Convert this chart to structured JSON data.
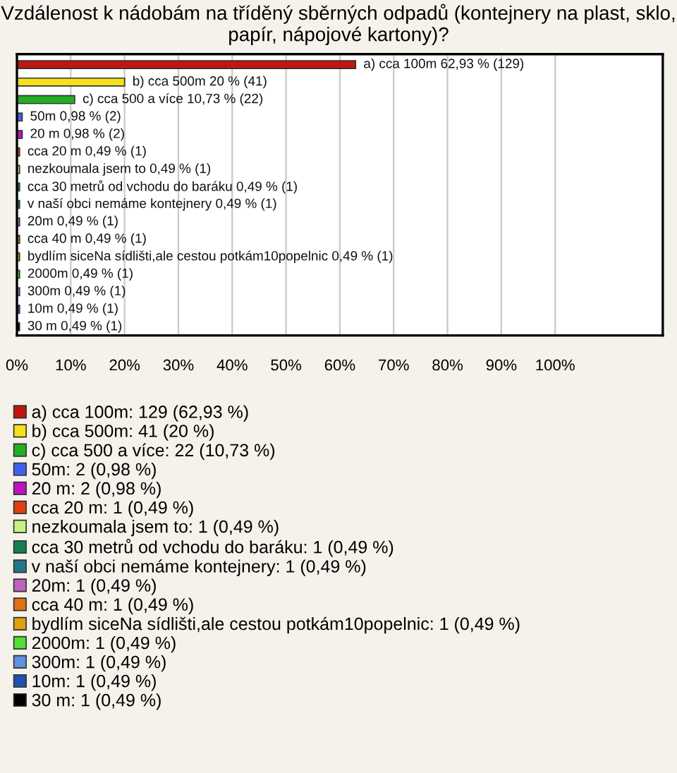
{
  "chart_data": {
    "type": "bar",
    "orientation": "horizontal",
    "title": "Vzdálenost k nádobám na tříděný sběrných odpadů (kontejnery na plast, sklo, papír, nápojové kartony)?",
    "categories": [
      null,
      null,
      null,
      null,
      null,
      null,
      null,
      null,
      null,
      null,
      null,
      null,
      null,
      null,
      null,
      null
    ],
    "xlim": [
      0,
      120
    ],
    "xticks": [
      {
        "value": 0,
        "label": "0%"
      },
      {
        "value": 10,
        "label": "10%"
      },
      {
        "value": 20,
        "label": "20%"
      },
      {
        "value": 30,
        "label": "30%"
      },
      {
        "value": 40,
        "label": "40%"
      },
      {
        "value": 50,
        "label": "50%"
      },
      {
        "value": 60,
        "label": "60%"
      },
      {
        "value": 70,
        "label": "70%"
      },
      {
        "value": 80,
        "label": "80%"
      },
      {
        "value": 90,
        "label": "90%"
      },
      {
        "value": 100,
        "label": "100%"
      }
    ],
    "grid": "x",
    "legend": "bottom",
    "tick_labels": "x",
    "series": [
      {
        "name": "a) cca 100m: 129 (62,93 %)",
        "color": "#c0160f",
        "values": [
          62.93,
          null,
          null,
          null,
          null,
          null,
          null,
          null,
          null,
          null,
          null,
          null,
          null,
          null,
          null,
          null
        ],
        "value_labels": [
          "a) cca 100m 62,93 % (129)",
          null,
          null,
          null,
          null,
          null,
          null,
          null,
          null,
          null,
          null,
          null,
          null,
          null,
          null,
          null
        ]
      },
      {
        "name": "b) cca 500m: 41 (20 %)",
        "color": "#f5e01a",
        "values": [
          null,
          20,
          null,
          null,
          null,
          null,
          null,
          null,
          null,
          null,
          null,
          null,
          null,
          null,
          null,
          null
        ],
        "value_labels": [
          null,
          "b) cca 500m 20 % (41)",
          null,
          null,
          null,
          null,
          null,
          null,
          null,
          null,
          null,
          null,
          null,
          null,
          null,
          null
        ]
      },
      {
        "name": "c) cca 500 a více: 22 (10,73 %)",
        "color": "#22b022",
        "values": [
          null,
          null,
          10.73,
          null,
          null,
          null,
          null,
          null,
          null,
          null,
          null,
          null,
          null,
          null,
          null,
          null
        ],
        "value_labels": [
          null,
          null,
          "c) cca 500 a více 10,73 % (22)",
          null,
          null,
          null,
          null,
          null,
          null,
          null,
          null,
          null,
          null,
          null,
          null,
          null
        ]
      },
      {
        "name": "50m: 2 (0,98 %)",
        "color": "#4060ee",
        "values": [
          null,
          null,
          null,
          0.98,
          null,
          null,
          null,
          null,
          null,
          null,
          null,
          null,
          null,
          null,
          null,
          null
        ],
        "value_labels": [
          null,
          null,
          null,
          "50m 0,98 % (2)",
          null,
          null,
          null,
          null,
          null,
          null,
          null,
          null,
          null,
          null,
          null,
          null
        ]
      },
      {
        "name": "20 m: 2 (0,98 %)",
        "color": "#c010c0",
        "values": [
          null,
          null,
          null,
          null,
          0.98,
          null,
          null,
          null,
          null,
          null,
          null,
          null,
          null,
          null,
          null,
          null
        ],
        "value_labels": [
          null,
          null,
          null,
          null,
          "20 m 0,98 % (2)",
          null,
          null,
          null,
          null,
          null,
          null,
          null,
          null,
          null,
          null,
          null
        ]
      },
      {
        "name": "cca 20 m: 1 (0,49 %)",
        "color": "#e04010",
        "values": [
          null,
          null,
          null,
          null,
          null,
          0.49,
          null,
          null,
          null,
          null,
          null,
          null,
          null,
          null,
          null,
          null
        ],
        "value_labels": [
          null,
          null,
          null,
          null,
          null,
          "cca 20 m 0,49 % (1)",
          null,
          null,
          null,
          null,
          null,
          null,
          null,
          null,
          null,
          null
        ]
      },
      {
        "name": "nezkoumala jsem to: 1 (0,49 %)",
        "color": "#c8f080",
        "values": [
          null,
          null,
          null,
          null,
          null,
          null,
          0.49,
          null,
          null,
          null,
          null,
          null,
          null,
          null,
          null,
          null
        ],
        "value_labels": [
          null,
          null,
          null,
          null,
          null,
          null,
          "nezkoumala jsem to 0,49 % (1)",
          null,
          null,
          null,
          null,
          null,
          null,
          null,
          null,
          null
        ]
      },
      {
        "name": "cca 30 metrů od vchodu do baráku: 1 (0,49 %)",
        "color": "#108050",
        "values": [
          null,
          null,
          null,
          null,
          null,
          null,
          null,
          0.49,
          null,
          null,
          null,
          null,
          null,
          null,
          null,
          null
        ],
        "value_labels": [
          null,
          null,
          null,
          null,
          null,
          null,
          null,
          "cca 30 metrů od vchodu do baráku 0,49 % (1)",
          null,
          null,
          null,
          null,
          null,
          null,
          null,
          null
        ]
      },
      {
        "name": "v naší obci nemáme kontejnery: 1 (0,49 %)",
        "color": "#207888",
        "values": [
          null,
          null,
          null,
          null,
          null,
          null,
          null,
          null,
          0.49,
          null,
          null,
          null,
          null,
          null,
          null,
          null
        ],
        "value_labels": [
          null,
          null,
          null,
          null,
          null,
          null,
          null,
          null,
          "v naší obci nemáme kontejnery 0,49 % (1)",
          null,
          null,
          null,
          null,
          null,
          null,
          null
        ]
      },
      {
        "name": "20m: 1 (0,49 %)",
        "color": "#c060c0",
        "values": [
          null,
          null,
          null,
          null,
          null,
          null,
          null,
          null,
          null,
          0.49,
          null,
          null,
          null,
          null,
          null,
          null
        ],
        "value_labels": [
          null,
          null,
          null,
          null,
          null,
          null,
          null,
          null,
          null,
          "20m 0,49 % (1)",
          null,
          null,
          null,
          null,
          null,
          null
        ]
      },
      {
        "name": "cca 40 m: 1 (0,49 %)",
        "color": "#e07010",
        "values": [
          null,
          null,
          null,
          null,
          null,
          null,
          null,
          null,
          null,
          null,
          0.49,
          null,
          null,
          null,
          null,
          null
        ],
        "value_labels": [
          null,
          null,
          null,
          null,
          null,
          null,
          null,
          null,
          null,
          null,
          "cca 40 m 0,49 % (1)",
          null,
          null,
          null,
          null,
          null
        ]
      },
      {
        "name": "bydlím siceNa sídlišti,ale cestou potkám10popelnic: 1 (0,49 %)",
        "color": "#e0a010",
        "values": [
          null,
          null,
          null,
          null,
          null,
          null,
          null,
          null,
          null,
          null,
          null,
          0.49,
          null,
          null,
          null,
          null
        ],
        "value_labels": [
          null,
          null,
          null,
          null,
          null,
          null,
          null,
          null,
          null,
          null,
          null,
          "bydlím siceNa sídlišti,ale cestou potkám10popelnic 0,49 % (1)",
          null,
          null,
          null,
          null
        ]
      },
      {
        "name": "2000m: 1 (0,49 %)",
        "color": "#50e030",
        "values": [
          null,
          null,
          null,
          null,
          null,
          null,
          null,
          null,
          null,
          null,
          null,
          null,
          0.49,
          null,
          null,
          null
        ],
        "value_labels": [
          null,
          null,
          null,
          null,
          null,
          null,
          null,
          null,
          null,
          null,
          null,
          null,
          "2000m 0,49 % (1)",
          null,
          null,
          null
        ]
      },
      {
        "name": "300m: 1 (0,49 %)",
        "color": "#6090e0",
        "values": [
          null,
          null,
          null,
          null,
          null,
          null,
          null,
          null,
          null,
          null,
          null,
          null,
          null,
          0.49,
          null,
          null
        ],
        "value_labels": [
          null,
          null,
          null,
          null,
          null,
          null,
          null,
          null,
          null,
          null,
          null,
          null,
          null,
          "300m 0,49 % (1)",
          null,
          null
        ]
      },
      {
        "name": "10m: 1 (0,49 %)",
        "color": "#2050b0",
        "values": [
          null,
          null,
          null,
          null,
          null,
          null,
          null,
          null,
          null,
          null,
          null,
          null,
          null,
          null,
          0.49,
          null
        ],
        "value_labels": [
          null,
          null,
          null,
          null,
          null,
          null,
          null,
          null,
          null,
          null,
          null,
          null,
          null,
          null,
          "10m 0,49 % (1)",
          null
        ]
      },
      {
        "name": "30 m: 1 (0,49 %)",
        "color": "#000000",
        "values": [
          null,
          null,
          null,
          null,
          null,
          null,
          null,
          null,
          null,
          null,
          null,
          null,
          null,
          null,
          null,
          0.49
        ],
        "value_labels": [
          null,
          null,
          null,
          null,
          null,
          null,
          null,
          null,
          null,
          null,
          null,
          null,
          null,
          null,
          null,
          "30 m 0,49 % (1)"
        ]
      }
    ]
  }
}
